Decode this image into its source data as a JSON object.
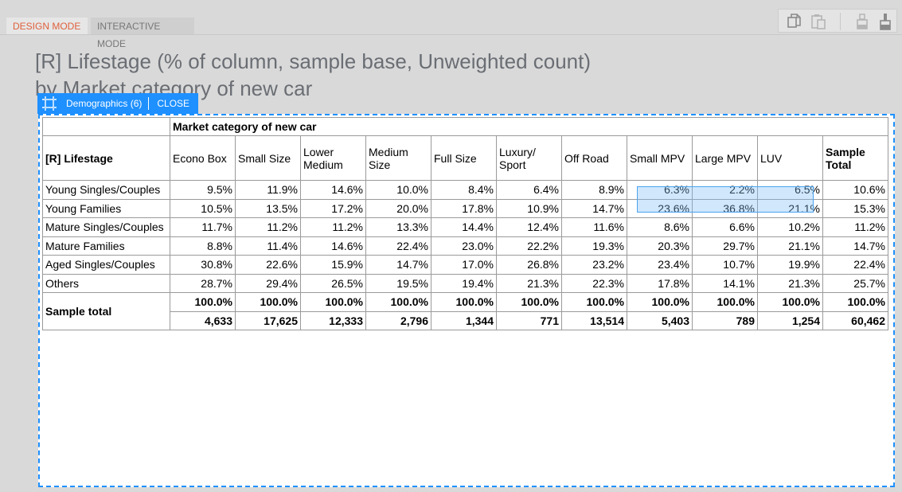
{
  "tabs": {
    "design": "DESIGN MODE",
    "interactive": "INTERACTIVE MODE"
  },
  "toolbar": {
    "icons": [
      "copy-icon",
      "paste-icon",
      "lock-icon",
      "brush-icon"
    ]
  },
  "title": {
    "line1": "[R] Lifestage (% of column, sample base, Unweighted count)",
    "line2": "by Market category of new car"
  },
  "selection": {
    "name": "Demographics (6)",
    "close_label": "CLOSE"
  },
  "table": {
    "column_group": "Market category of new car",
    "stub_header": "[R] Lifestage",
    "columns": [
      "Econo Box",
      "Small Size",
      "Lower Medium",
      "Medium Size",
      "Full Size",
      "Luxury/ Sport",
      "Off Road",
      "Small MPV",
      "Large MPV",
      "LUV",
      "Sample Total"
    ],
    "rows": [
      {
        "label": "Young Singles/Couples",
        "values": [
          "9.5%",
          "11.9%",
          "14.6%",
          "10.0%",
          "8.4%",
          "6.4%",
          "8.9%",
          "6.3%",
          "2.2%",
          "6.5%",
          "10.6%"
        ]
      },
      {
        "label": "Young Families",
        "values": [
          "10.5%",
          "13.5%",
          "17.2%",
          "20.0%",
          "17.8%",
          "10.9%",
          "14.7%",
          "23.6%",
          "36.8%",
          "21.1%",
          "15.3%"
        ]
      },
      {
        "label": "Mature Singles/Couples",
        "values": [
          "11.7%",
          "11.2%",
          "11.2%",
          "13.3%",
          "14.4%",
          "12.4%",
          "11.6%",
          "8.6%",
          "6.6%",
          "10.2%",
          "11.2%"
        ]
      },
      {
        "label": "Mature Families",
        "values": [
          "8.8%",
          "11.4%",
          "14.6%",
          "22.4%",
          "23.0%",
          "22.2%",
          "19.3%",
          "20.3%",
          "29.7%",
          "21.1%",
          "14.7%"
        ]
      },
      {
        "label": "Aged Singles/Couples",
        "values": [
          "30.8%",
          "22.6%",
          "15.9%",
          "14.7%",
          "17.0%",
          "26.8%",
          "23.2%",
          "23.4%",
          "10.7%",
          "19.9%",
          "22.4%"
        ]
      },
      {
        "label": "Others",
        "values": [
          "28.7%",
          "29.4%",
          "26.5%",
          "19.5%",
          "19.4%",
          "21.3%",
          "22.3%",
          "17.8%",
          "14.1%",
          "21.3%",
          "25.7%"
        ]
      }
    ],
    "total": {
      "label": "Sample total",
      "pct": [
        "100.0%",
        "100.0%",
        "100.0%",
        "100.0%",
        "100.0%",
        "100.0%",
        "100.0%",
        "100.0%",
        "100.0%",
        "100.0%",
        "100.0%"
      ],
      "counts": [
        "4,633",
        "17,625",
        "12,333",
        "2,796",
        "1,344",
        "771",
        "13,514",
        "5,403",
        "789",
        "1,254",
        "60,462"
      ]
    }
  }
}
